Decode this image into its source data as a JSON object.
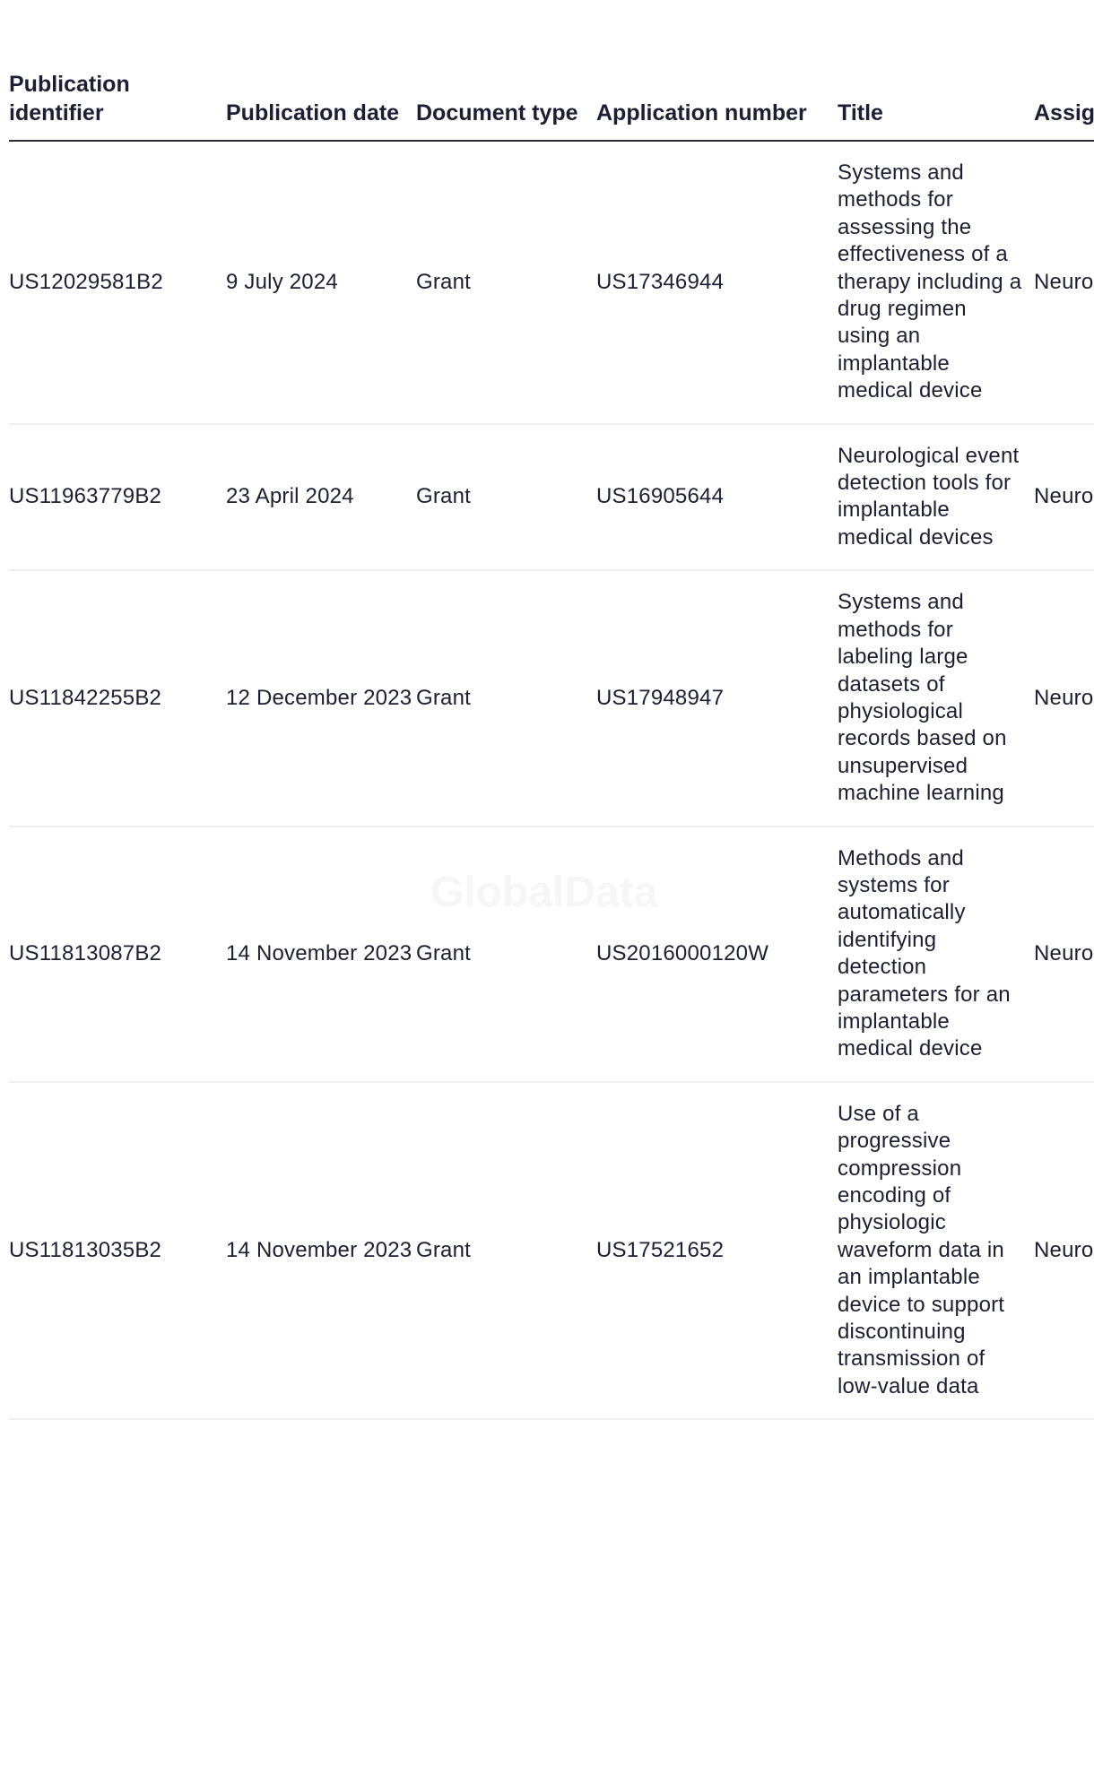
{
  "table": {
    "headers": [
      "Publication identifier",
      "Publication date",
      "Document type",
      "Application number",
      "Title",
      "Assignee"
    ],
    "rows": [
      {
        "id": "US12029581B2",
        "date": "9 July 2024",
        "type": "Grant",
        "app": "US17346944",
        "title": "Systems and methods for assessing the effectiveness of a therapy including a drug regimen using an implantable medical device",
        "assignee": "Neuro Inc"
      },
      {
        "id": "US11963779B2",
        "date": "23 April 2024",
        "type": "Grant",
        "app": "US16905644",
        "title": "Neurological event detection tools for implantable medical devices",
        "assignee": "Neuro Inc"
      },
      {
        "id": "US11842255B2",
        "date": "12 December 2023",
        "type": "Grant",
        "app": "US17948947",
        "title": "Systems and methods for labeling large datasets of physiological records based on unsupervised machine learning",
        "assignee": "Neuro Inc"
      },
      {
        "id": "US11813087B2",
        "date": "14 November 2023",
        "type": "Grant",
        "app": "US2016000120W",
        "title": "Methods and systems for automatically identifying detection parameters for an implantable medical device",
        "assignee": "Neuro Inc"
      },
      {
        "id": "US11813035B2",
        "date": "14 November 2023",
        "type": "Grant",
        "app": "US17521652",
        "title": "Use of a progressive compression encoding of physiologic waveform data in an implantable device to support discontinuing transmission of low-value data",
        "assignee": "Neuro Inc"
      }
    ]
  },
  "watermark": "GlobalData"
}
